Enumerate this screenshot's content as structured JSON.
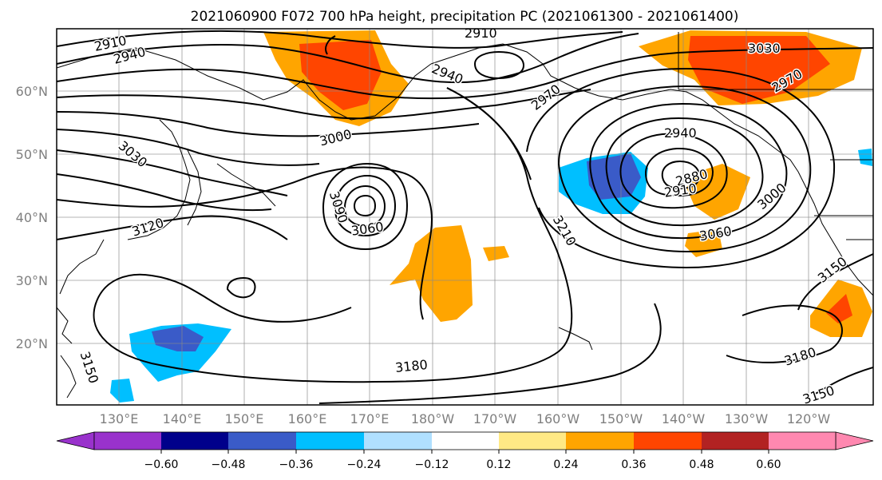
{
  "title": "2021060900 F072 700 hPa height, precipitation PC (2021061300 - 2021061400)",
  "latitude_labels": [
    "60°N",
    "50°N",
    "40°N",
    "30°N",
    "20°N"
  ],
  "longitude_labels": [
    "130°E",
    "140°E",
    "150°E",
    "160°E",
    "170°E",
    "180°W",
    "170°W",
    "160°W",
    "150°W",
    "140°W",
    "130°W",
    "120°W"
  ],
  "contour_labels": [
    "2910",
    "2940",
    "2910",
    "2940",
    "2970",
    "3030",
    "2970",
    "3000",
    "3030",
    "3120",
    "3090",
    "3060",
    "3210",
    "2940",
    "2880",
    "2910",
    "3000",
    "3060",
    "3150",
    "3180",
    "3180",
    "3150",
    "3150"
  ],
  "colorbar": {
    "ticks": [
      "−0.60",
      "−0.48",
      "−0.36",
      "−0.24",
      "−0.12",
      "0.12",
      "0.24",
      "0.36",
      "0.48",
      "0.60"
    ],
    "colors": [
      "#9932cc",
      "#00008b",
      "#3a5bc8",
      "#00bfff",
      "#b0e0ff",
      "#ffffff",
      "#ffe985",
      "#ffa500",
      "#ff4500",
      "#b22222",
      "#ff88b0"
    ]
  }
}
